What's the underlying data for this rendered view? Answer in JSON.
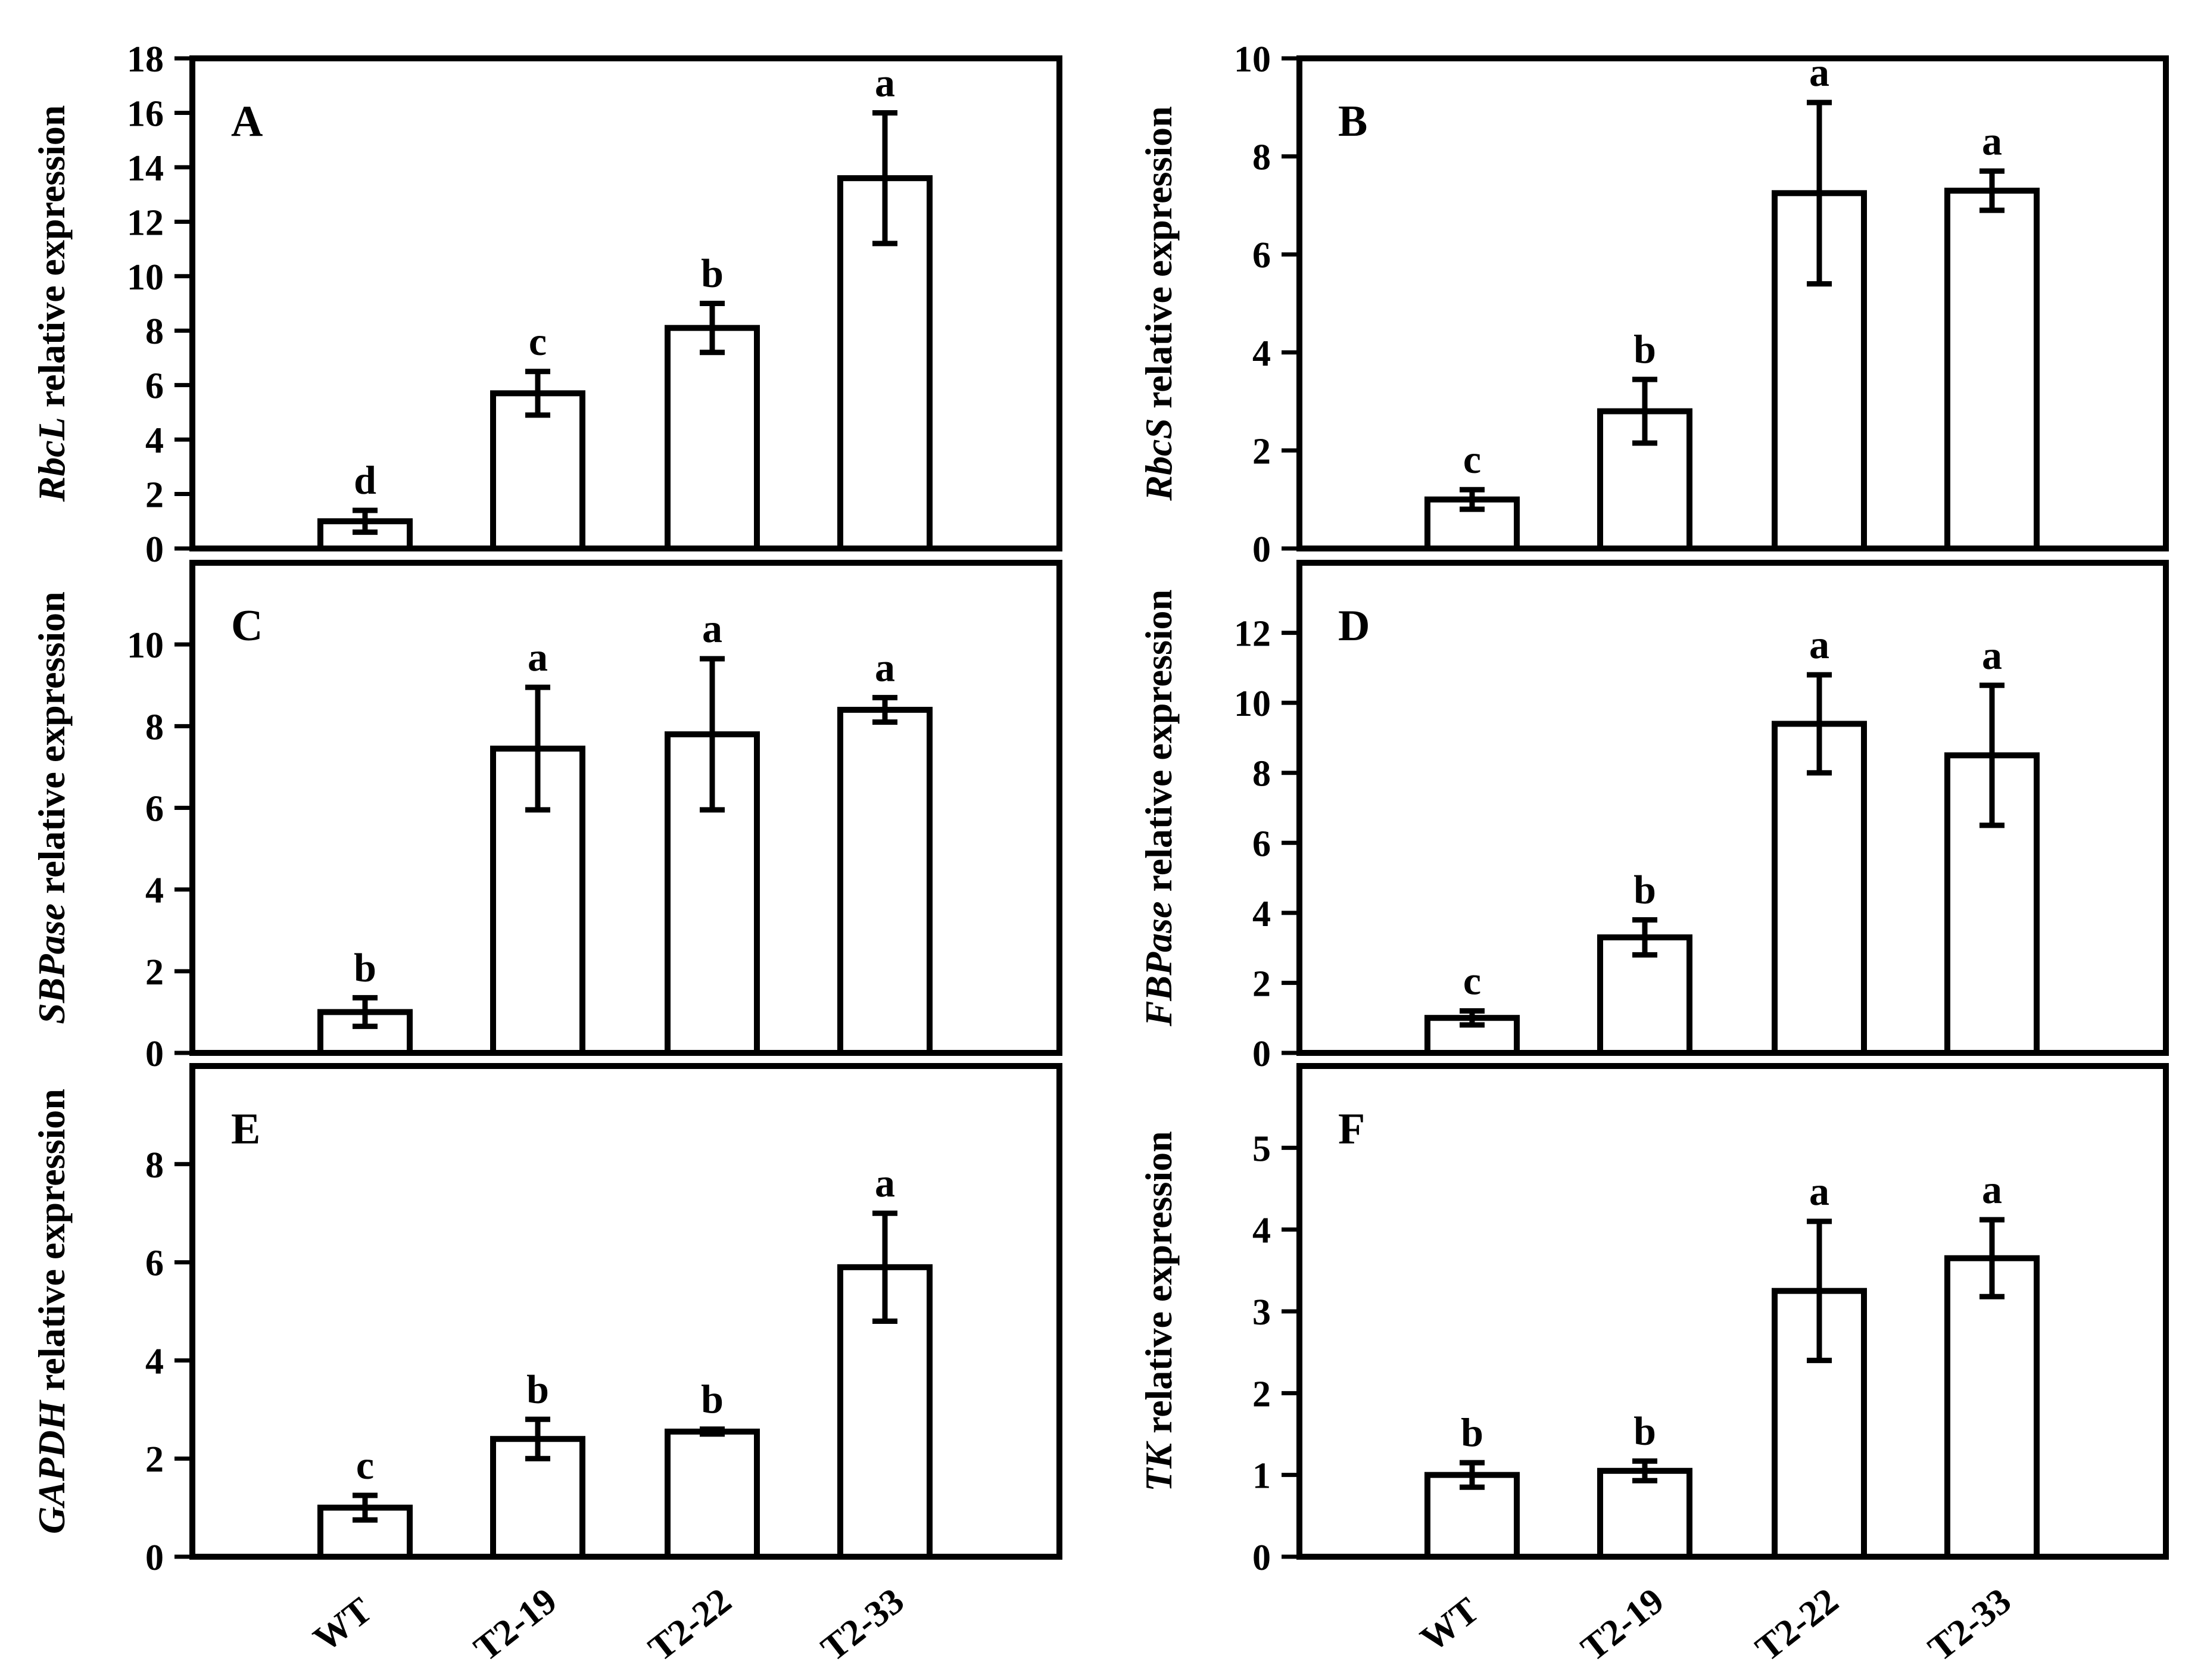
{
  "chart_data": [
    {
      "panel": "A",
      "type": "bar",
      "gene": "RbcL",
      "ylabel_suffix": " relative expression",
      "categories": [
        "WT",
        "T2-19",
        "T2-22",
        "T2-33"
      ],
      "values": [
        1.0,
        5.7,
        8.1,
        13.6
      ],
      "errors": [
        0.4,
        0.8,
        0.9,
        2.4
      ],
      "letters": [
        "d",
        "c",
        "b",
        "a"
      ],
      "ylim": [
        0,
        18
      ],
      "yticks": [
        0,
        2,
        4,
        6,
        8,
        10,
        12,
        14,
        16,
        18
      ]
    },
    {
      "panel": "B",
      "type": "bar",
      "gene": "RbcS",
      "ylabel_suffix": " relative expression",
      "categories": [
        "WT",
        "T2-19",
        "T2-22",
        "T2-33"
      ],
      "values": [
        1.0,
        2.8,
        7.25,
        7.3
      ],
      "errors": [
        0.2,
        0.65,
        1.85,
        0.4
      ],
      "letters": [
        "c",
        "b",
        "a",
        "a"
      ],
      "ylim": [
        0,
        10
      ],
      "yticks": [
        0,
        2,
        4,
        6,
        8,
        10
      ]
    },
    {
      "panel": "C",
      "type": "bar",
      "gene": "SBPase",
      "ylabel_suffix": " relative expression",
      "categories": [
        "WT",
        "T2-19",
        "T2-22",
        "T2-33"
      ],
      "values": [
        1.0,
        7.45,
        7.8,
        8.4
      ],
      "errors": [
        0.35,
        1.5,
        1.85,
        0.3
      ],
      "letters": [
        "b",
        "a",
        "a",
        "a"
      ],
      "ylim": [
        0,
        12
      ],
      "yticks": [
        0,
        2,
        4,
        6,
        8,
        10
      ]
    },
    {
      "panel": "D",
      "type": "bar",
      "gene": "FBPase",
      "ylabel_suffix": " relative expression",
      "categories": [
        "WT",
        "T2-19",
        "T2-22",
        "T2-33"
      ],
      "values": [
        1.0,
        3.3,
        9.4,
        8.5
      ],
      "errors": [
        0.2,
        0.5,
        1.4,
        2.0
      ],
      "letters": [
        "c",
        "b",
        "a",
        "a"
      ],
      "ylim": [
        0,
        14
      ],
      "yticks": [
        0,
        2,
        4,
        6,
        8,
        10,
        12
      ]
    },
    {
      "panel": "E",
      "type": "bar",
      "gene": "GAPDH",
      "ylabel_suffix": " relative expression",
      "categories": [
        "WT",
        "T2-19",
        "T2-22",
        "T2-33"
      ],
      "values": [
        1.0,
        2.4,
        2.55,
        5.9
      ],
      "errors": [
        0.25,
        0.4,
        0.05,
        1.1
      ],
      "letters": [
        "c",
        "b",
        "b",
        "a"
      ],
      "ylim": [
        0,
        10
      ],
      "yticks": [
        0,
        2,
        4,
        6,
        8
      ]
    },
    {
      "panel": "F",
      "type": "bar",
      "gene": "TK",
      "ylabel_suffix": " relative expression",
      "categories": [
        "WT",
        "T2-19",
        "T2-22",
        "T2-33"
      ],
      "values": [
        1.0,
        1.05,
        3.25,
        3.65
      ],
      "errors": [
        0.15,
        0.12,
        0.85,
        0.47
      ],
      "letters": [
        "b",
        "b",
        "a",
        "a"
      ],
      "ylim": [
        0,
        6
      ],
      "yticks": [
        0,
        1,
        2,
        3,
        4,
        5
      ]
    }
  ]
}
